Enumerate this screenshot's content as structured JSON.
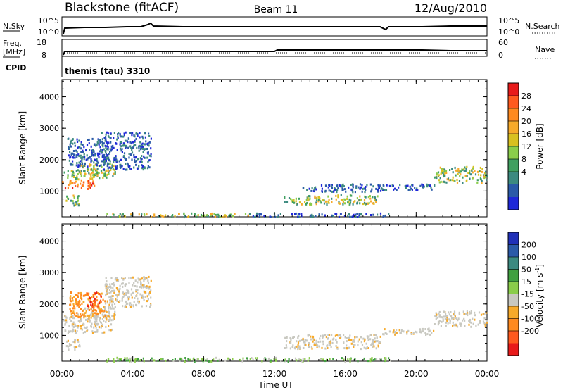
{
  "header": {
    "station": "Blackstone (fitACF)",
    "beam": "Beam 11",
    "date": "12/Aug/2010"
  },
  "noise_panel": {
    "left_label": "N.Sky",
    "left_ticks": [
      "10^5",
      "10^0"
    ],
    "right_ticks": [
      "10^5",
      "10^0"
    ],
    "right_label": "N.Search"
  },
  "freq_panel": {
    "left_label_1": "Freq.",
    "left_label_2": "[MHz]",
    "left_ticks": [
      "18",
      "8"
    ],
    "right_ticks": [
      "60",
      "0"
    ],
    "right_label": "Nave"
  },
  "cpid_panel": {
    "left_label": "CPID",
    "program": "themis (tau) 3310"
  },
  "x_axis": {
    "title": "Time UT",
    "ticks": [
      "00:00",
      "04:00",
      "08:00",
      "12:00",
      "16:00",
      "20:00",
      "00:00"
    ]
  },
  "chart_data": [
    {
      "type": "heatmap",
      "panel": "power",
      "ylabel": "Slant Range [km]",
      "yticks": [
        1000,
        2000,
        3000,
        4000
      ],
      "ylim": [
        180,
        4550
      ],
      "xlim_hours": [
        0,
        24
      ],
      "colorbar": {
        "label": "Power [dB]",
        "ticks": [
          "28",
          "24",
          "20",
          "16",
          "12",
          "8",
          "4"
        ],
        "colors": [
          "#e81a1a",
          "#ff5a1e",
          "#ff8a1f",
          "#f7aa2a",
          "#d8c020",
          "#8acd4a",
          "#40a060",
          "#3c8a80",
          "#2a5aa8",
          "#1e28d8"
        ]
      },
      "echo_regions": [
        {
          "t0": 0.0,
          "t1": 1.8,
          "r0": 1100,
          "r1": 1400,
          "level": "high"
        },
        {
          "t0": 0.0,
          "t1": 2.5,
          "r0": 1400,
          "r1": 1700,
          "level": "mid"
        },
        {
          "t0": 1.0,
          "t1": 3.0,
          "r0": 1500,
          "r1": 1900,
          "level": "mid"
        },
        {
          "t0": 0.3,
          "t1": 2.6,
          "r0": 1800,
          "r1": 2700,
          "level": "low"
        },
        {
          "t0": 2.2,
          "t1": 5.0,
          "r0": 1700,
          "r1": 2900,
          "level": "low"
        },
        {
          "t0": 0.2,
          "t1": 1.0,
          "r0": 550,
          "r1": 900,
          "level": "mid"
        },
        {
          "t0": 2.5,
          "t1": 10.5,
          "r0": 200,
          "r1": 320,
          "level": "mid"
        },
        {
          "t0": 10.5,
          "t1": 18.5,
          "r0": 200,
          "r1": 320,
          "level": "low"
        },
        {
          "t0": 12.5,
          "t1": 17.8,
          "r0": 600,
          "r1": 900,
          "level": "mid"
        },
        {
          "t0": 13.5,
          "t1": 18.0,
          "r0": 1000,
          "r1": 1250,
          "level": "low"
        },
        {
          "t0": 18.0,
          "t1": 21.0,
          "r0": 1050,
          "r1": 1250,
          "level": "low"
        },
        {
          "t0": 21.0,
          "t1": 24.0,
          "r0": 1300,
          "r1": 1800,
          "level": "mid"
        }
      ]
    },
    {
      "type": "heatmap",
      "panel": "velocity",
      "ylabel": "Slant Range [km]",
      "yticks": [
        1000,
        2000,
        3000,
        4000
      ],
      "ylim": [
        180,
        4550
      ],
      "xlim_hours": [
        0,
        24
      ],
      "colorbar": {
        "label": "Velocity [m s",
        "label_sup": "-1",
        "label_end": "]",
        "ticks": [
          "200",
          "100",
          "50",
          "15",
          "-15",
          "-50",
          "-100",
          "-200"
        ],
        "colors": [
          "#2030b8",
          "#2a5aa8",
          "#3c8a80",
          "#40a040",
          "#8acd4a",
          "#c8c8c0",
          "#f7aa2a",
          "#ff8a1f",
          "#ff5a1e",
          "#e81a1a"
        ]
      },
      "echo_regions": [
        {
          "t0": 0.0,
          "t1": 2.8,
          "r0": 1100,
          "r1": 1700,
          "level": "gray"
        },
        {
          "t0": 1.2,
          "t1": 3.0,
          "r0": 1500,
          "r1": 1900,
          "level": "gray"
        },
        {
          "t0": 0.4,
          "t1": 2.4,
          "r0": 1600,
          "r1": 2400,
          "level": "orange"
        },
        {
          "t0": 1.4,
          "t1": 2.2,
          "r0": 1900,
          "r1": 2400,
          "level": "red"
        },
        {
          "t0": 2.4,
          "t1": 5.0,
          "r0": 1900,
          "r1": 2900,
          "level": "gray"
        },
        {
          "t0": 0.2,
          "t1": 1.0,
          "r0": 550,
          "r1": 900,
          "level": "gray"
        },
        {
          "t0": 2.5,
          "t1": 18.5,
          "r0": 200,
          "r1": 320,
          "level": "green"
        },
        {
          "t0": 12.5,
          "t1": 18.0,
          "r0": 600,
          "r1": 1050,
          "level": "gray"
        },
        {
          "t0": 18.0,
          "t1": 21.0,
          "r0": 1050,
          "r1": 1250,
          "level": "gray"
        },
        {
          "t0": 21.0,
          "t1": 24.0,
          "r0": 1300,
          "r1": 1800,
          "level": "gray"
        }
      ]
    }
  ]
}
